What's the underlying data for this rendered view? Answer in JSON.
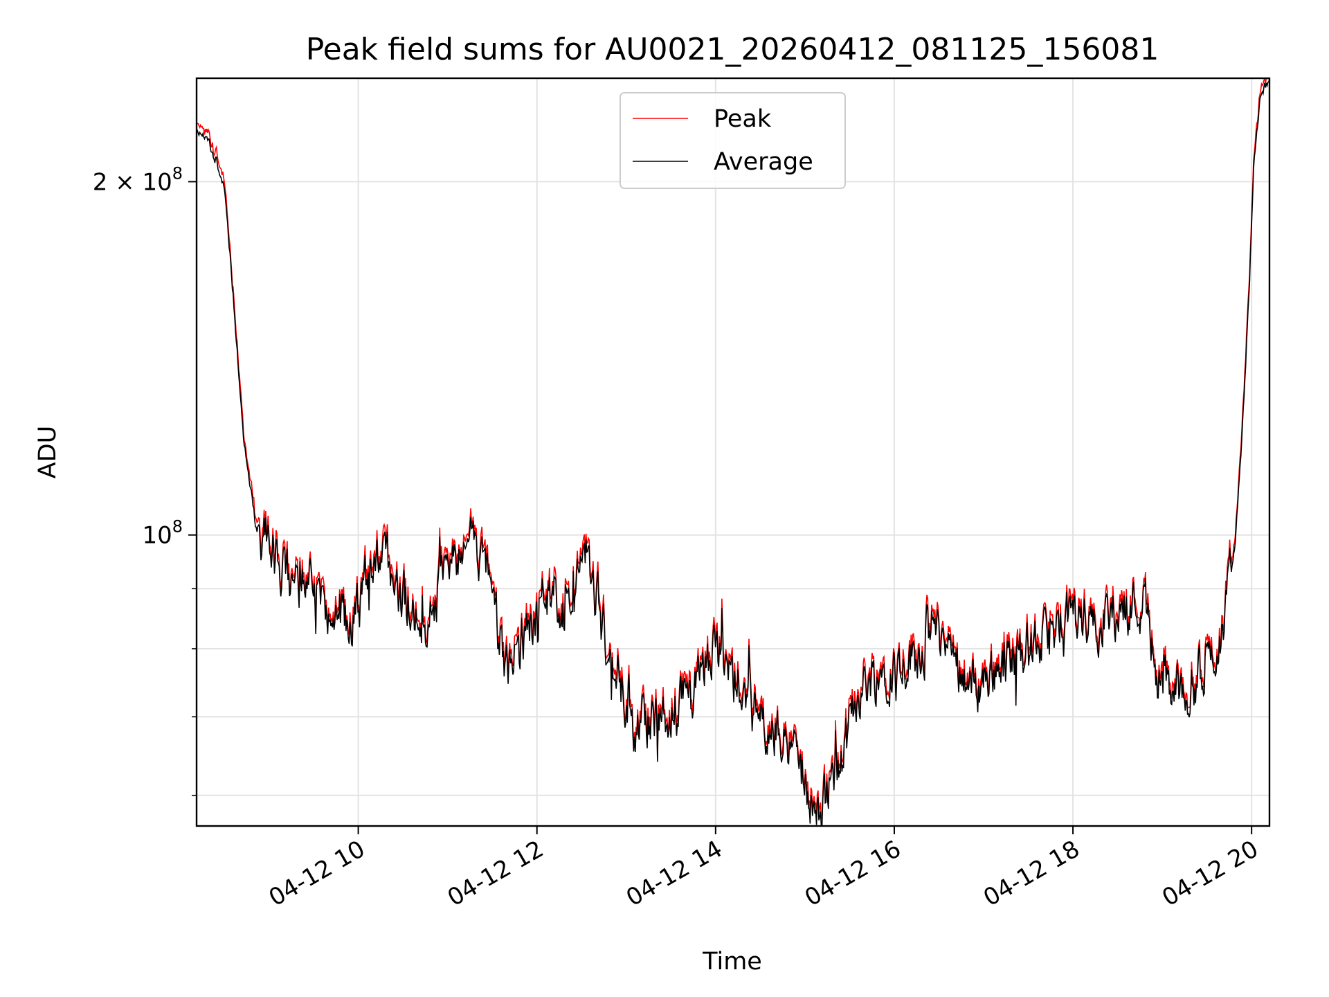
{
  "chart_data": {
    "type": "line",
    "title": "Peak field sums for AU0021_20260412_081125_156081",
    "xlabel": "Time",
    "ylabel": "ADU",
    "yscale": "log",
    "grid": true,
    "legend_position": "top-center",
    "x_range_hours": [
      8.19,
      20.2
    ],
    "y_range": [
      56500000,
      245000000
    ],
    "x_ticks": [
      {
        "hour": 10,
        "label": "04-12 10"
      },
      {
        "hour": 12,
        "label": "04-12 12"
      },
      {
        "hour": 14,
        "label": "04-12 14"
      },
      {
        "hour": 16,
        "label": "04-12 16"
      },
      {
        "hour": 18,
        "label": "04-12 18"
      },
      {
        "hour": 20,
        "label": "04-12 20"
      }
    ],
    "y_major_ticks": [
      {
        "value": 200000000,
        "base": "2 × 10",
        "exp": "8"
      },
      {
        "value": 100000000,
        "base": "10",
        "exp": "8"
      }
    ],
    "y_minor_ticks": [
      60000000,
      70000000,
      80000000,
      90000000
    ],
    "series": [
      {
        "name": "Peak",
        "color": "#ff0000",
        "role": "peak"
      },
      {
        "name": "Average",
        "color": "#000000",
        "role": "average"
      }
    ],
    "average_anchors": [
      [
        8.19,
        222000000
      ],
      [
        8.3,
        218000000
      ],
      [
        8.4,
        210000000
      ],
      [
        8.5,
        200000000
      ],
      [
        8.6,
        160000000
      ],
      [
        8.72,
        120000000
      ],
      [
        8.85,
        102000000
      ],
      [
        8.95,
        100000000
      ],
      [
        9.2,
        92000000
      ],
      [
        9.5,
        90000000
      ],
      [
        9.85,
        84000000
      ],
      [
        10.0,
        87000000
      ],
      [
        10.25,
        98000000
      ],
      [
        10.5,
        88000000
      ],
      [
        10.75,
        84000000
      ],
      [
        11.0,
        94000000
      ],
      [
        11.3,
        98000000
      ],
      [
        11.5,
        90000000
      ],
      [
        11.65,
        76000000
      ],
      [
        11.9,
        82000000
      ],
      [
        12.1,
        90000000
      ],
      [
        12.3,
        86000000
      ],
      [
        12.55,
        96000000
      ],
      [
        12.8,
        80000000
      ],
      [
        13.1,
        68000000
      ],
      [
        13.4,
        70000000
      ],
      [
        13.7,
        72000000
      ],
      [
        14.0,
        80000000
      ],
      [
        14.2,
        76000000
      ],
      [
        14.5,
        70000000
      ],
      [
        14.8,
        66000000
      ],
      [
        15.0,
        62000000
      ],
      [
        15.15,
        58000000
      ],
      [
        15.4,
        63000000
      ],
      [
        15.6,
        74000000
      ],
      [
        15.9,
        77000000
      ],
      [
        16.1,
        78000000
      ],
      [
        16.3,
        80000000
      ],
      [
        16.45,
        84000000
      ],
      [
        16.7,
        78000000
      ],
      [
        16.9,
        74000000
      ],
      [
        17.2,
        78000000
      ],
      [
        17.5,
        80000000
      ],
      [
        17.8,
        82000000
      ],
      [
        18.0,
        86000000
      ],
      [
        18.2,
        84000000
      ],
      [
        18.5,
        86000000
      ],
      [
        18.8,
        88000000
      ],
      [
        18.95,
        76000000
      ],
      [
        19.1,
        74000000
      ],
      [
        19.3,
        74000000
      ],
      [
        19.55,
        78000000
      ],
      [
        19.72,
        86000000
      ],
      [
        19.82,
        100000000
      ],
      [
        19.9,
        125000000
      ],
      [
        19.97,
        160000000
      ],
      [
        20.03,
        210000000
      ],
      [
        20.1,
        238000000
      ],
      [
        20.2,
        245000000
      ]
    ]
  }
}
